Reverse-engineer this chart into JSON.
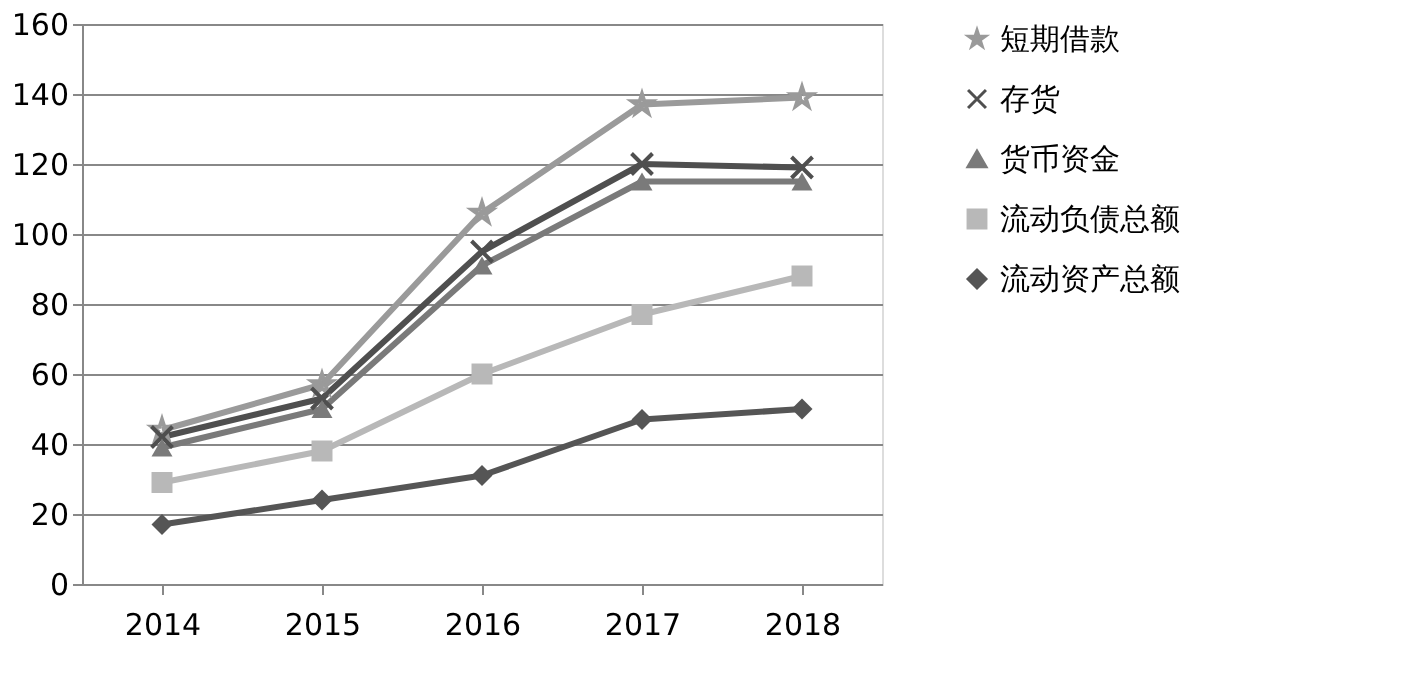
{
  "chart_data": {
    "type": "line",
    "categories": [
      "2014",
      "2015",
      "2016",
      "2017",
      "2018"
    ],
    "series": [
      {
        "name": "短期借款",
        "color": "#9a9a9a",
        "marker": "star",
        "values": [
          44,
          57,
          106,
          137,
          139
        ]
      },
      {
        "name": "存货",
        "color": "#4f4f4f",
        "marker": "cross",
        "values": [
          42,
          53,
          95,
          120,
          119
        ]
      },
      {
        "name": "货币资金",
        "color": "#7a7a7a",
        "marker": "triangle",
        "values": [
          39,
          50,
          91,
          115,
          115
        ]
      },
      {
        "name": "流动负债总额",
        "color": "#b8b8b8",
        "marker": "square",
        "values": [
          29,
          38,
          60,
          77,
          88
        ]
      },
      {
        "name": "流动资产总额",
        "color": "#555555",
        "marker": "diamond",
        "values": [
          17,
          24,
          31,
          47,
          50
        ]
      }
    ],
    "ylim": [
      0,
      160
    ],
    "yticks": [
      0,
      20,
      40,
      60,
      80,
      100,
      120,
      140,
      160
    ],
    "grid": "y",
    "legend": "right"
  }
}
